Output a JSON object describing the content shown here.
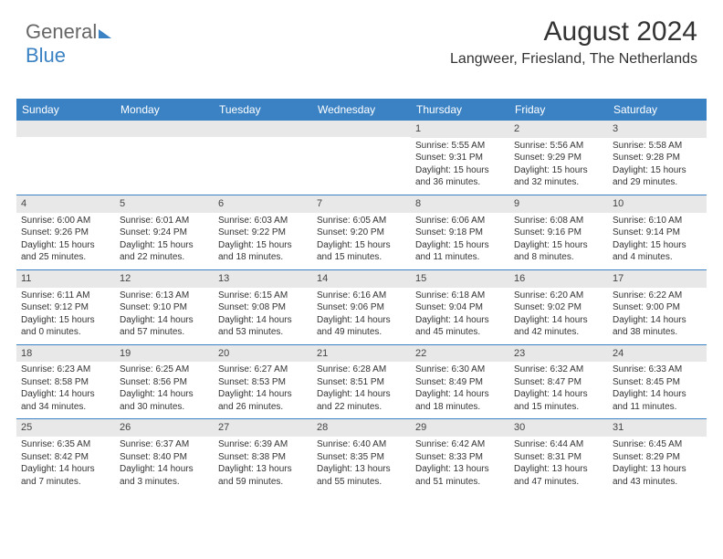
{
  "logo": {
    "part1": "General",
    "part2": "Blue"
  },
  "header": {
    "month": "August 2024",
    "location": "Langweer, Friesland, The Netherlands"
  },
  "colors": {
    "accent": "#3b82c4",
    "header_bg": "#3b82c4",
    "daynum_bg": "#e8e8e8",
    "text": "#333333"
  },
  "dayNames": [
    "Sunday",
    "Monday",
    "Tuesday",
    "Wednesday",
    "Thursday",
    "Friday",
    "Saturday"
  ],
  "weeks": [
    [
      {
        "n": "",
        "sr": "",
        "ss": "",
        "dl": ""
      },
      {
        "n": "",
        "sr": "",
        "ss": "",
        "dl": ""
      },
      {
        "n": "",
        "sr": "",
        "ss": "",
        "dl": ""
      },
      {
        "n": "",
        "sr": "",
        "ss": "",
        "dl": ""
      },
      {
        "n": "1",
        "sr": "Sunrise: 5:55 AM",
        "ss": "Sunset: 9:31 PM",
        "dl": "Daylight: 15 hours and 36 minutes."
      },
      {
        "n": "2",
        "sr": "Sunrise: 5:56 AM",
        "ss": "Sunset: 9:29 PM",
        "dl": "Daylight: 15 hours and 32 minutes."
      },
      {
        "n": "3",
        "sr": "Sunrise: 5:58 AM",
        "ss": "Sunset: 9:28 PM",
        "dl": "Daylight: 15 hours and 29 minutes."
      }
    ],
    [
      {
        "n": "4",
        "sr": "Sunrise: 6:00 AM",
        "ss": "Sunset: 9:26 PM",
        "dl": "Daylight: 15 hours and 25 minutes."
      },
      {
        "n": "5",
        "sr": "Sunrise: 6:01 AM",
        "ss": "Sunset: 9:24 PM",
        "dl": "Daylight: 15 hours and 22 minutes."
      },
      {
        "n": "6",
        "sr": "Sunrise: 6:03 AM",
        "ss": "Sunset: 9:22 PM",
        "dl": "Daylight: 15 hours and 18 minutes."
      },
      {
        "n": "7",
        "sr": "Sunrise: 6:05 AM",
        "ss": "Sunset: 9:20 PM",
        "dl": "Daylight: 15 hours and 15 minutes."
      },
      {
        "n": "8",
        "sr": "Sunrise: 6:06 AM",
        "ss": "Sunset: 9:18 PM",
        "dl": "Daylight: 15 hours and 11 minutes."
      },
      {
        "n": "9",
        "sr": "Sunrise: 6:08 AM",
        "ss": "Sunset: 9:16 PM",
        "dl": "Daylight: 15 hours and 8 minutes."
      },
      {
        "n": "10",
        "sr": "Sunrise: 6:10 AM",
        "ss": "Sunset: 9:14 PM",
        "dl": "Daylight: 15 hours and 4 minutes."
      }
    ],
    [
      {
        "n": "11",
        "sr": "Sunrise: 6:11 AM",
        "ss": "Sunset: 9:12 PM",
        "dl": "Daylight: 15 hours and 0 minutes."
      },
      {
        "n": "12",
        "sr": "Sunrise: 6:13 AM",
        "ss": "Sunset: 9:10 PM",
        "dl": "Daylight: 14 hours and 57 minutes."
      },
      {
        "n": "13",
        "sr": "Sunrise: 6:15 AM",
        "ss": "Sunset: 9:08 PM",
        "dl": "Daylight: 14 hours and 53 minutes."
      },
      {
        "n": "14",
        "sr": "Sunrise: 6:16 AM",
        "ss": "Sunset: 9:06 PM",
        "dl": "Daylight: 14 hours and 49 minutes."
      },
      {
        "n": "15",
        "sr": "Sunrise: 6:18 AM",
        "ss": "Sunset: 9:04 PM",
        "dl": "Daylight: 14 hours and 45 minutes."
      },
      {
        "n": "16",
        "sr": "Sunrise: 6:20 AM",
        "ss": "Sunset: 9:02 PM",
        "dl": "Daylight: 14 hours and 42 minutes."
      },
      {
        "n": "17",
        "sr": "Sunrise: 6:22 AM",
        "ss": "Sunset: 9:00 PM",
        "dl": "Daylight: 14 hours and 38 minutes."
      }
    ],
    [
      {
        "n": "18",
        "sr": "Sunrise: 6:23 AM",
        "ss": "Sunset: 8:58 PM",
        "dl": "Daylight: 14 hours and 34 minutes."
      },
      {
        "n": "19",
        "sr": "Sunrise: 6:25 AM",
        "ss": "Sunset: 8:56 PM",
        "dl": "Daylight: 14 hours and 30 minutes."
      },
      {
        "n": "20",
        "sr": "Sunrise: 6:27 AM",
        "ss": "Sunset: 8:53 PM",
        "dl": "Daylight: 14 hours and 26 minutes."
      },
      {
        "n": "21",
        "sr": "Sunrise: 6:28 AM",
        "ss": "Sunset: 8:51 PM",
        "dl": "Daylight: 14 hours and 22 minutes."
      },
      {
        "n": "22",
        "sr": "Sunrise: 6:30 AM",
        "ss": "Sunset: 8:49 PM",
        "dl": "Daylight: 14 hours and 18 minutes."
      },
      {
        "n": "23",
        "sr": "Sunrise: 6:32 AM",
        "ss": "Sunset: 8:47 PM",
        "dl": "Daylight: 14 hours and 15 minutes."
      },
      {
        "n": "24",
        "sr": "Sunrise: 6:33 AM",
        "ss": "Sunset: 8:45 PM",
        "dl": "Daylight: 14 hours and 11 minutes."
      }
    ],
    [
      {
        "n": "25",
        "sr": "Sunrise: 6:35 AM",
        "ss": "Sunset: 8:42 PM",
        "dl": "Daylight: 14 hours and 7 minutes."
      },
      {
        "n": "26",
        "sr": "Sunrise: 6:37 AM",
        "ss": "Sunset: 8:40 PM",
        "dl": "Daylight: 14 hours and 3 minutes."
      },
      {
        "n": "27",
        "sr": "Sunrise: 6:39 AM",
        "ss": "Sunset: 8:38 PM",
        "dl": "Daylight: 13 hours and 59 minutes."
      },
      {
        "n": "28",
        "sr": "Sunrise: 6:40 AM",
        "ss": "Sunset: 8:35 PM",
        "dl": "Daylight: 13 hours and 55 minutes."
      },
      {
        "n": "29",
        "sr": "Sunrise: 6:42 AM",
        "ss": "Sunset: 8:33 PM",
        "dl": "Daylight: 13 hours and 51 minutes."
      },
      {
        "n": "30",
        "sr": "Sunrise: 6:44 AM",
        "ss": "Sunset: 8:31 PM",
        "dl": "Daylight: 13 hours and 47 minutes."
      },
      {
        "n": "31",
        "sr": "Sunrise: 6:45 AM",
        "ss": "Sunset: 8:29 PM",
        "dl": "Daylight: 13 hours and 43 minutes."
      }
    ]
  ]
}
